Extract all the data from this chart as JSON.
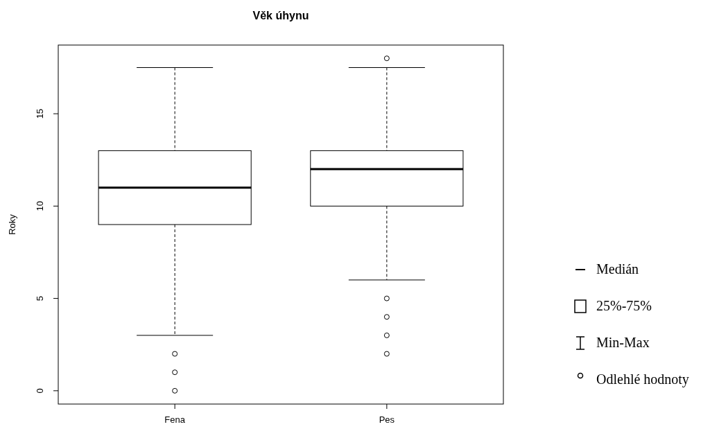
{
  "chart_data": {
    "type": "box",
    "title": "Věk úhynu",
    "ylabel": "Roky",
    "categories": [
      "Fena",
      "Pes"
    ],
    "boxes": [
      {
        "low": 3,
        "q1": 9,
        "median": 11,
        "q3": 13,
        "high": 17.5,
        "outliers": [
          2,
          1,
          0
        ]
      },
      {
        "low": 6,
        "q1": 10,
        "median": 12,
        "q3": 13,
        "high": 17.5,
        "outliers": [
          18,
          5,
          4,
          3,
          2
        ]
      }
    ],
    "ylim": [
      -0.72,
      18.72
    ],
    "yticks": [
      0,
      5,
      10,
      15
    ],
    "annotations": [
      "Medián",
      "25%-75%",
      "Min-Max",
      "Odlehlé hodnoty"
    ]
  }
}
